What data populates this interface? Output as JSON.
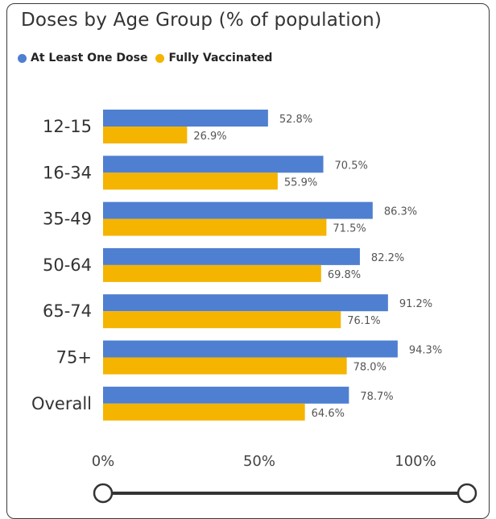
{
  "title": "Doses by Age Group (% of population)",
  "legend": [
    {
      "label": "At Least One Dose",
      "color": "#4f7fd0"
    },
    {
      "label": "Fully Vaccinated",
      "color": "#f5b400"
    }
  ],
  "slider": {
    "start": 0,
    "end": 1
  },
  "chart_data": {
    "type": "bar",
    "orientation": "horizontal",
    "title": "Doses by Age Group (% of population)",
    "categories": [
      "12-15",
      "16-34",
      "35-49",
      "50-64",
      "65-74",
      "75+",
      "Overall"
    ],
    "series": [
      {
        "name": "At Least One Dose",
        "color": "#4f7fd0",
        "values": [
          52.8,
          70.5,
          86.3,
          82.2,
          91.2,
          94.3,
          78.7
        ],
        "labels": [
          "52.8%",
          "70.5%",
          "86.3%",
          "82.2%",
          "91.2%",
          "94.3%",
          "78.7%"
        ]
      },
      {
        "name": "Fully Vaccinated",
        "color": "#f5b400",
        "values": [
          26.9,
          55.9,
          71.5,
          69.8,
          76.1,
          78.0,
          64.6
        ],
        "labels": [
          "26.9%",
          "55.9%",
          "71.5%",
          "69.8%",
          "76.1%",
          "78.0%",
          "64.6%"
        ]
      }
    ],
    "xlim": [
      0,
      100
    ],
    "xticks": [
      "0%",
      "50%",
      "100%"
    ],
    "grid": false,
    "legend_position": "top-left"
  }
}
